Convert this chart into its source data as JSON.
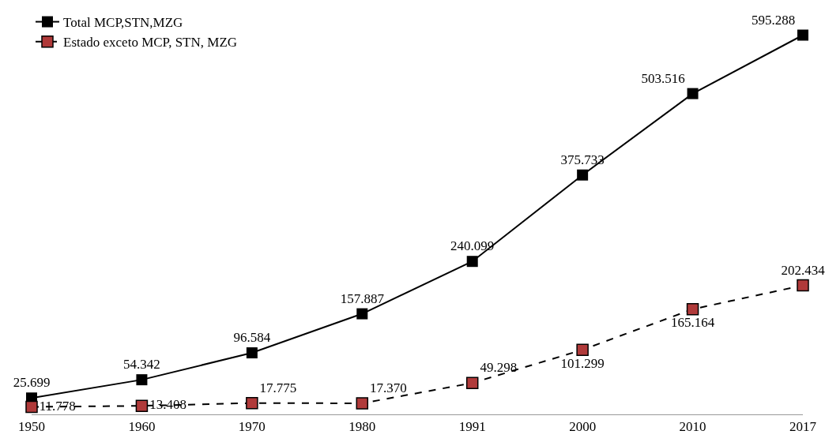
{
  "chart_data": {
    "type": "line",
    "categories": [
      "1950",
      "1960",
      "1970",
      "1980",
      "1991",
      "2000",
      "2010",
      "2017"
    ],
    "series": [
      {
        "name": "Total MCP,STN,MZG",
        "color": "#000000",
        "line_style": "solid",
        "values": [
          25699,
          54342,
          96584,
          157887,
          240099,
          375733,
          503516,
          595288
        ],
        "value_labels": [
          "25.699",
          "54.342",
          "96.584",
          "157.887",
          "240.099",
          "375.733",
          "503.516",
          "595.288"
        ]
      },
      {
        "name": "Estado exceto MCP, STN, MZG",
        "color": "#000000",
        "line_style": "dashed",
        "values": [
          11778,
          13408,
          17775,
          17370,
          49298,
          101299,
          165164,
          202434
        ],
        "value_labels": [
          "11.778",
          "13.408",
          "17.775",
          "17.370",
          "49.298",
          "101.299",
          "165.164",
          "202.434"
        ]
      }
    ],
    "tick_labels": "x",
    "marker": "square",
    "legend": "top left",
    "grid": false
  }
}
